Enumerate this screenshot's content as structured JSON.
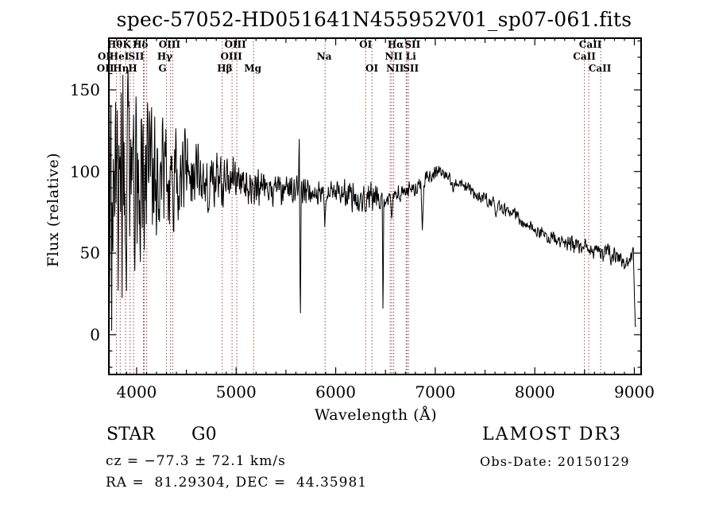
{
  "header": {
    "title": "spec-57052-HD051641N455952V01_sp07-061.fits"
  },
  "chart_data": {
    "type": "line",
    "title": "spec-57052-HD051641N455952V01_sp07-061.fits",
    "xlabel": "Wavelength (Å)",
    "ylabel": "Flux (relative)",
    "xlim": [
      3721,
      9068
    ],
    "ylim": [
      -24.4,
      181.7
    ],
    "xticks": [
      4000,
      5000,
      6000,
      7000,
      8000,
      9000
    ],
    "yticks": [
      0,
      50,
      100,
      150
    ],
    "x_minor_step": 100,
    "y_minor_step": 10,
    "grid": false,
    "legend": "none",
    "series_name": "observed spectrum",
    "series_color": "#000000",
    "marker_line_color": "#993634",
    "spectrum_range": [
      3722,
      9015
    ],
    "envelope": [
      [
        3722,
        70,
        90
      ],
      [
        3790,
        92,
        85
      ],
      [
        3900,
        96,
        78
      ],
      [
        4050,
        100,
        62
      ],
      [
        4200,
        99,
        50
      ],
      [
        4300,
        97,
        45
      ],
      [
        4400,
        97,
        34
      ],
      [
        4500,
        96,
        30
      ],
      [
        4650,
        95,
        24
      ],
      [
        4800,
        94,
        19
      ],
      [
        5000,
        93,
        16
      ],
      [
        5200,
        90,
        15
      ],
      [
        5400,
        89,
        12
      ],
      [
        5600,
        88,
        10
      ],
      [
        5800,
        87,
        9
      ],
      [
        6000,
        88,
        8
      ],
      [
        6200,
        85,
        11
      ],
      [
        6400,
        84,
        10
      ],
      [
        6600,
        86,
        7
      ],
      [
        6800,
        90,
        6
      ],
      [
        6950,
        98,
        5
      ],
      [
        7050,
        100,
        5
      ],
      [
        7200,
        94,
        5
      ],
      [
        7400,
        86,
        5
      ],
      [
        7600,
        80,
        5
      ],
      [
        7800,
        73,
        5
      ],
      [
        8000,
        65,
        5
      ],
      [
        8200,
        58,
        5
      ],
      [
        8400,
        55,
        6
      ],
      [
        8600,
        52,
        6
      ],
      [
        8800,
        48,
        7
      ],
      [
        8920,
        46,
        7
      ],
      [
        8990,
        50,
        5
      ],
      [
        9002,
        20,
        4
      ],
      [
        9010,
        6,
        3
      ],
      [
        9015,
        5,
        2
      ]
    ],
    "absorption_features": [
      [
        5633,
        126,
        7
      ],
      [
        5645,
        4,
        9
      ],
      [
        5890,
        66,
        12
      ],
      [
        6300,
        74,
        10
      ],
      [
        6475,
        6,
        8
      ],
      [
        6563,
        70,
        14
      ],
      [
        6870,
        64,
        16
      ],
      [
        7180,
        86,
        14
      ],
      [
        7610,
        72,
        20
      ],
      [
        8498,
        54,
        8
      ],
      [
        8542,
        52,
        8
      ],
      [
        8662,
        47,
        8
      ],
      [
        8905,
        40,
        12
      ]
    ],
    "line_markers": [
      {
        "label": "Hθ",
        "wavelength": 3798,
        "row": 1,
        "dx": -2
      },
      {
        "label": "K",
        "wavelength": 3934,
        "row": 1,
        "dx": -4
      },
      {
        "label": "Hδ",
        "wavelength": 4102,
        "row": 1,
        "dx": -8
      },
      {
        "label": "OIII",
        "wavelength": 4363,
        "row": 1,
        "dx": -4
      },
      {
        "label": "OIII",
        "wavelength": 5007,
        "row": 1,
        "dx": -2
      },
      {
        "label": "OI",
        "wavelength": 6300,
        "row": 1,
        "dx": 0
      },
      {
        "label": "Hα",
        "wavelength": 6563,
        "row": 1,
        "dx": 5
      },
      {
        "label": "SII",
        "wavelength": 6716,
        "row": 1,
        "dx": 7
      },
      {
        "label": "CaII",
        "wavelength": 8542,
        "row": 1,
        "dx": 2
      },
      {
        "label": "OI",
        "wavelength": 3729,
        "row": 2,
        "dx": -7
      },
      {
        "label": "HeI",
        "wavelength": 3889,
        "row": 2,
        "dx": -8
      },
      {
        "label": "SII",
        "wavelength": 4076,
        "row": 2,
        "dx": -10
      },
      {
        "label": "Hγ",
        "wavelength": 4340,
        "row": 2,
        "dx": -7
      },
      {
        "label": "OIII",
        "wavelength": 4959,
        "row": 2,
        "dx": -1
      },
      {
        "label": "Na",
        "wavelength": 5893,
        "row": 2,
        "dx": -1
      },
      {
        "label": "NII",
        "wavelength": 6583,
        "row": 2,
        "dx": 0
      },
      {
        "label": "Li",
        "wavelength": 6708,
        "row": 2,
        "dx": 6
      },
      {
        "label": "CaII",
        "wavelength": 8498,
        "row": 2,
        "dx": 0
      },
      {
        "label": "OII",
        "wavelength": 3726,
        "row": 3,
        "dx": -5
      },
      {
        "label": "Hη",
        "wavelength": 3835,
        "row": 3,
        "dx": 1
      },
      {
        "label": "H",
        "wavelength": 3969,
        "row": 3,
        "dx": -1
      },
      {
        "label": "G",
        "wavelength": 4300,
        "row": 3,
        "dx": -5
      },
      {
        "label": "Hβ",
        "wavelength": 4861,
        "row": 3,
        "dx": 3
      },
      {
        "label": "Mg",
        "wavelength": 5175,
        "row": 3,
        "dx": -1
      },
      {
        "label": "OI",
        "wavelength": 6363,
        "row": 3,
        "dx": 0
      },
      {
        "label": "NII",
        "wavelength": 6548,
        "row": 3,
        "dx": 6
      },
      {
        "label": "SII",
        "wavelength": 6731,
        "row": 3,
        "dx": 3
      },
      {
        "label": "CaII",
        "wavelength": 8662,
        "row": 3,
        "dx": -1
      }
    ],
    "extra_marker_lines": [
      4068
    ]
  },
  "annotations": {
    "class_category": "STAR",
    "subclass": "G0",
    "cz": "cz = −77.3 ± 72.1 km/s",
    "radec": "RA =  81.29304, DEC =  44.35981",
    "survey": "LAMOST DR3",
    "obs_date": "Obs-Date: 20150129"
  }
}
